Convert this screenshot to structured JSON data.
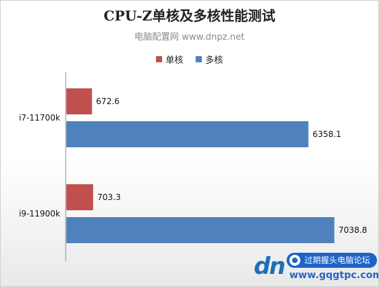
{
  "chart_data": {
    "type": "bar",
    "orientation": "horizontal",
    "title": "CPU-Z单核及多核性能测试",
    "subtitle": "电脑配置网 www.dnpz.net",
    "categories": [
      "i7-11700k",
      "i9-11900k"
    ],
    "series": [
      {
        "name": "单核",
        "color": "#c0504d",
        "values": [
          672.6,
          703.3
        ]
      },
      {
        "name": "多核",
        "color": "#4f81bd",
        "values": [
          6358.1,
          7038.8
        ]
      }
    ],
    "xlim": [
      0,
      8000
    ],
    "grid": false,
    "legend_position": "top"
  },
  "watermark": {
    "logo_text": "dn",
    "badge_text": "过期握头电脑论坛",
    "url": "www.gqgtpc.com"
  }
}
